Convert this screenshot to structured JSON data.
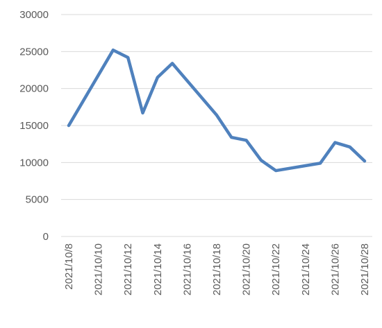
{
  "chart_data": {
    "type": "line",
    "x": [
      "2021/10/8",
      "2021/10/11",
      "2021/10/12",
      "2021/10/13",
      "2021/10/14",
      "2021/10/15",
      "2021/10/18",
      "2021/10/19",
      "2021/10/20",
      "2021/10/21",
      "2021/10/22",
      "2021/10/25",
      "2021/10/26",
      "2021/10/27",
      "2021/10/28"
    ],
    "series": [
      {
        "color": "#4f81bd",
        "values": [
          15000,
          25200,
          24200,
          16700,
          21500,
          23400,
          16400,
          13400,
          13000,
          10300,
          8900,
          9900,
          12700,
          12100,
          10200
        ]
      }
    ],
    "xlim": [
      "2021/10/8",
      "2021/10/28"
    ],
    "xticks": [
      "2021/10/8",
      "2021/10/10",
      "2021/10/12",
      "2021/10/14",
      "2021/10/16",
      "2021/10/18",
      "2021/10/20",
      "2021/10/22",
      "2021/10/24",
      "2021/10/26",
      "2021/10/28"
    ],
    "ylim": [
      0,
      30000
    ],
    "yticks": [
      0,
      5000,
      10000,
      15000,
      20000,
      25000,
      30000
    ],
    "grid": true
  }
}
